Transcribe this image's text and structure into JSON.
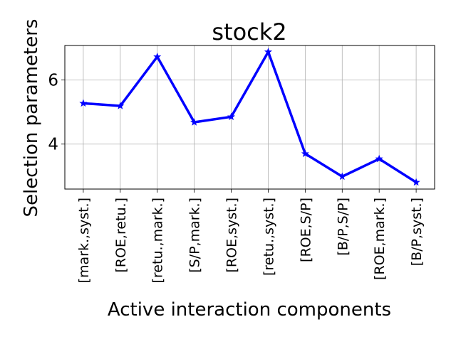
{
  "chart_data": {
    "type": "line",
    "title": "stock2",
    "xlabel": "Active interaction components",
    "ylabel": "Selection parameters",
    "categories": [
      "[mark.,syst.]",
      "[ROE,retu.]",
      "[retu.,mark.]",
      "[S/P,mark.]",
      "[ROE,syst.]",
      "[retu.,syst.]",
      "[ROE,S/P]",
      "[B/P,S/P]",
      "[ROE,mark.]",
      "[B/P,syst.]"
    ],
    "series": [
      {
        "name": "",
        "values": [
          5.27,
          5.19,
          6.72,
          4.68,
          4.85,
          6.87,
          3.7,
          2.99,
          3.54,
          2.81
        ],
        "color": "#0000ff",
        "marker": "star"
      }
    ],
    "ylim": [
      2.6,
      7.07
    ],
    "yticks": [
      4,
      6
    ],
    "grid": true,
    "legend": "none"
  }
}
